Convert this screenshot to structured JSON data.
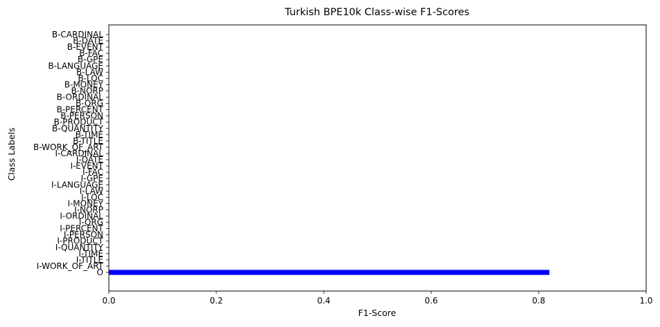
{
  "chart_data": {
    "type": "bar",
    "orientation": "horizontal",
    "title": "Turkish BPE10k Class-wise F1-Scores",
    "xlabel": "F1-Score",
    "ylabel": "Class Labels",
    "xlim": [
      0,
      1.0
    ],
    "xticks": [
      "0.0",
      "0.2",
      "0.4",
      "0.6",
      "0.8",
      "1.0"
    ],
    "grid": false,
    "bar_color": "#0000ff",
    "categories": [
      "B-CARDINAL",
      "B-DATE",
      "B-EVENT",
      "B-FAC",
      "B-GPE",
      "B-LANGUAGE",
      "B-LAW",
      "B-LOC",
      "B-MONEY",
      "B-NORP",
      "B-ORDINAL",
      "B-ORG",
      "B-PERCENT",
      "B-PERSON",
      "B-PRODUCT",
      "B-QUANTITY",
      "B-TIME",
      "B-TITLE",
      "B-WORK_OF_ART",
      "I-CARDINAL",
      "I-DATE",
      "I-EVENT",
      "I-FAC",
      "I-GPE",
      "I-LANGUAGE",
      "I-LAW",
      "I-LOC",
      "I-MONEY",
      "I-NORP",
      "I-ORDINAL",
      "I-ORG",
      "I-PERCENT",
      "I-PERSON",
      "I-PRODUCT",
      "I-QUANTITY",
      "I-TIME",
      "I-TITLE",
      "I-WORK_OF_ART",
      "O"
    ],
    "values": [
      0,
      0,
      0,
      0,
      0,
      0,
      0,
      0,
      0,
      0,
      0,
      0,
      0,
      0,
      0,
      0,
      0,
      0,
      0,
      0,
      0,
      0,
      0,
      0,
      0,
      0,
      0,
      0,
      0,
      0,
      0,
      0,
      0,
      0,
      0,
      0,
      0,
      0,
      0.82
    ]
  }
}
